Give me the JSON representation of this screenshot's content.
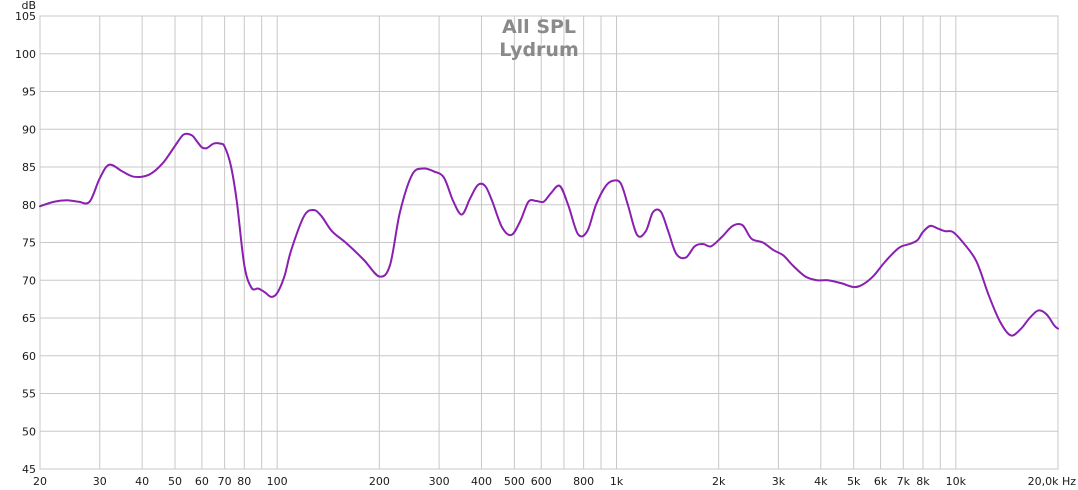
{
  "chart_data": {
    "type": "line",
    "title": "All SPL",
    "subtitle": "Lydrum",
    "ylabel": "dB",
    "xunit": "Hz",
    "xscale": "log",
    "xlim": [
      20,
      20000
    ],
    "ylim": [
      45,
      105
    ],
    "grid": true,
    "series_color": "#8a1fb0",
    "yticks": [
      {
        "value": 45,
        "label": "45"
      },
      {
        "value": 50,
        "label": "50"
      },
      {
        "value": 55,
        "label": "55"
      },
      {
        "value": 60,
        "label": "60"
      },
      {
        "value": 65,
        "label": "65"
      },
      {
        "value": 70,
        "label": "70"
      },
      {
        "value": 75,
        "label": "75"
      },
      {
        "value": 80,
        "label": "80"
      },
      {
        "value": 85,
        "label": "85"
      },
      {
        "value": 90,
        "label": "90"
      },
      {
        "value": 95,
        "label": "95"
      },
      {
        "value": 100,
        "label": "100"
      },
      {
        "value": 105,
        "label": "105"
      }
    ],
    "xticks": [
      {
        "value": 20,
        "label": "20"
      },
      {
        "value": 30,
        "label": "30"
      },
      {
        "value": 40,
        "label": "40"
      },
      {
        "value": 50,
        "label": "50"
      },
      {
        "value": 60,
        "label": "60"
      },
      {
        "value": 70,
        "label": "70"
      },
      {
        "value": 80,
        "label": "80"
      },
      {
        "value": 90,
        "label": ""
      },
      {
        "value": 100,
        "label": "100"
      },
      {
        "value": 200,
        "label": "200"
      },
      {
        "value": 300,
        "label": "300"
      },
      {
        "value": 400,
        "label": "400"
      },
      {
        "value": 500,
        "label": "500"
      },
      {
        "value": 600,
        "label": "600"
      },
      {
        "value": 700,
        "label": ""
      },
      {
        "value": 800,
        "label": "800"
      },
      {
        "value": 900,
        "label": ""
      },
      {
        "value": 1000,
        "label": "1k"
      },
      {
        "value": 2000,
        "label": "2k"
      },
      {
        "value": 3000,
        "label": "3k"
      },
      {
        "value": 4000,
        "label": "4k"
      },
      {
        "value": 5000,
        "label": "5k"
      },
      {
        "value": 6000,
        "label": "6k"
      },
      {
        "value": 7000,
        "label": "7k"
      },
      {
        "value": 8000,
        "label": "8k"
      },
      {
        "value": 9000,
        "label": ""
      },
      {
        "value": 10000,
        "label": "10k"
      },
      {
        "value": 20000,
        "label": "20,0k Hz"
      }
    ],
    "series": [
      {
        "x": [
          20,
          22,
          24,
          26,
          28,
          30,
          32,
          35,
          38,
          42,
          46,
          50,
          53,
          56,
          58,
          60,
          62,
          65,
          68,
          70,
          73,
          76,
          80,
          84,
          88,
          92,
          96,
          100,
          105,
          110,
          120,
          128,
          135,
          145,
          160,
          180,
          200,
          215,
          230,
          250,
          270,
          290,
          310,
          330,
          350,
          370,
          390,
          410,
          430,
          460,
          490,
          520,
          550,
          580,
          610,
          640,
          680,
          720,
          770,
          820,
          870,
          930,
          980,
          1030,
          1080,
          1150,
          1220,
          1280,
          1350,
          1420,
          1500,
          1600,
          1700,
          1800,
          1900,
          2050,
          2200,
          2350,
          2500,
          2700,
          2900,
          3100,
          3300,
          3600,
          3900,
          4200,
          4600,
          5000,
          5300,
          5700,
          6200,
          6800,
          7300,
          7700,
          8000,
          8400,
          8800,
          9300,
          9800,
          10500,
          11500,
          12500,
          13500,
          14500,
          15500,
          16500,
          17500,
          18500,
          19500,
          20000
        ],
        "y": [
          79.8,
          80.4,
          80.6,
          80.4,
          80.4,
          83.5,
          85.3,
          84.4,
          83.7,
          84.0,
          85.5,
          87.8,
          89.3,
          89.2,
          88.4,
          87.6,
          87.5,
          88.1,
          88.1,
          87.7,
          85.2,
          80.5,
          72.0,
          69.0,
          68.9,
          68.4,
          67.8,
          68.3,
          70.5,
          74.0,
          78.5,
          79.3,
          78.5,
          76.5,
          74.9,
          72.7,
          70.5,
          72.0,
          79.0,
          84.0,
          84.8,
          84.4,
          83.6,
          80.5,
          78.7,
          80.8,
          82.6,
          82.5,
          80.5,
          77.0,
          76.0,
          77.8,
          80.4,
          80.5,
          80.4,
          81.5,
          82.5,
          80.0,
          76.1,
          76.5,
          80.0,
          82.5,
          83.2,
          82.8,
          80.0,
          76.0,
          76.5,
          79.0,
          79.1,
          76.5,
          73.5,
          73.0,
          74.5,
          74.8,
          74.5,
          75.8,
          77.2,
          77.3,
          75.5,
          75.0,
          74.0,
          73.3,
          72.0,
          70.5,
          70.0,
          70.0,
          69.6,
          69.1,
          69.4,
          70.5,
          72.5,
          74.3,
          74.8,
          75.3,
          76.4,
          77.2,
          76.9,
          76.5,
          76.4,
          75.0,
          72.5,
          68.0,
          64.5,
          62.7,
          63.5,
          65.0,
          66.0,
          65.5,
          64.0,
          63.6
        ]
      }
    ]
  }
}
